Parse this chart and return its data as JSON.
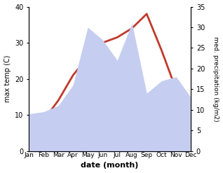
{
  "months": [
    "Jan",
    "Feb",
    "Mar",
    "Apr",
    "May",
    "Jun",
    "Jul",
    "Aug",
    "Sep",
    "Oct",
    "Nov",
    "Dec"
  ],
  "temperature": [
    7.5,
    8.5,
    14,
    21,
    26,
    30,
    31.5,
    34,
    38,
    28,
    17,
    10.5
  ],
  "precipitation": [
    9,
    9.5,
    11,
    16,
    30,
    27,
    22,
    31,
    14,
    17,
    18,
    13
  ],
  "temp_color": "#c0392b",
  "precip_fill_color": "#c5cef0",
  "temp_ylim": [
    0,
    40
  ],
  "precip_ylim": [
    0,
    35
  ],
  "temp_yticks": [
    0,
    10,
    20,
    30,
    40
  ],
  "precip_yticks": [
    0,
    5,
    10,
    15,
    20,
    25,
    30,
    35
  ],
  "xlabel": "date (month)",
  "ylabel_left": "max temp (C)",
  "ylabel_right": "med. precipitation (kg/m2)",
  "bg_color": "#ffffff"
}
